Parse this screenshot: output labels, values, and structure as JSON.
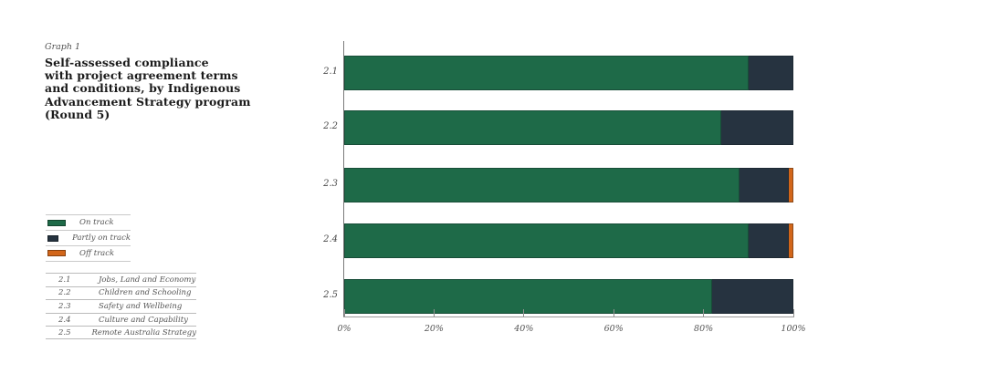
{
  "figure": {
    "label": "Graph 1",
    "title_lines": [
      "Self-assessed compliance",
      "with project agreement terms",
      "and conditions, by Indigenous",
      "Advancement Strategy program",
      "(Round 5)"
    ]
  },
  "colors": {
    "on_track": "#1e6a48",
    "partly_on_track": "#263340",
    "off_track": "#d2661a"
  },
  "legend": {
    "items": [
      {
        "label": "On track",
        "color": "#1e6a48"
      },
      {
        "label": "Partly on track",
        "color": "#263340"
      },
      {
        "label": "Off track",
        "color": "#d2661a"
      }
    ]
  },
  "program_table": {
    "rows": [
      {
        "code": "2.1",
        "name": "Jobs, Land and Economy"
      },
      {
        "code": "2.2",
        "name": "Children and Schooling"
      },
      {
        "code": "2.3",
        "name": "Safety and Wellbeing"
      },
      {
        "code": "2.4",
        "name": "Culture and Capability"
      },
      {
        "code": "2.5",
        "name": "Remote Australia Strategy"
      }
    ]
  },
  "chart_data": {
    "type": "bar",
    "orientation": "horizontal",
    "stacked": true,
    "title": "Self-assessed compliance with project agreement terms and conditions, by Indigenous Advancement Strategy program (Round 5)",
    "categories": [
      "2.1",
      "2.2",
      "2.3",
      "2.4",
      "2.5"
    ],
    "series": [
      {
        "name": "On track",
        "color": "#1e6a48",
        "values": [
          90,
          84,
          88,
          90,
          82
        ]
      },
      {
        "name": "Partly on track",
        "color": "#263340",
        "values": [
          10,
          16,
          11,
          9,
          18
        ]
      },
      {
        "name": "Off track",
        "color": "#d2661a",
        "values": [
          0,
          0,
          1,
          1,
          0
        ]
      }
    ],
    "xlabel": "",
    "ylabel": "",
    "xlim": [
      0,
      100
    ],
    "x_tick_values": [
      0,
      20,
      40,
      60,
      80,
      100
    ],
    "x_tick_labels": [
      "0%",
      "20%",
      "40%",
      "60%",
      "80%",
      "100%"
    ],
    "grid": false,
    "legend_position": "left-panel"
  }
}
